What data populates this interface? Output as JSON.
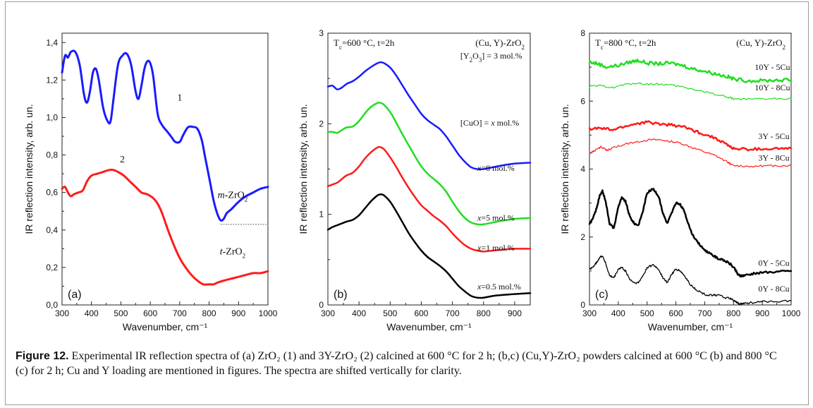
{
  "caption": {
    "label": "Figure 12.",
    "text": " Experimental IR reflection spectra of (a) ZrO₂ (1) and 3Y-ZrO₂ (2) calcined at 600 °C for 2 h; (b,c) (Cu,Y)-ZrO₂ powders calcined at 600 °C (b) and 800 °C (c) for 2 h; Cu and Y loading are mentioned in figures. The spectra are shifted vertically for clarity."
  },
  "chart_data": [
    {
      "type": "line",
      "panel_label": "(a)",
      "xlabel": "Wavenumber, cm⁻¹",
      "ylabel": "IR reflection intensity, arb. un.",
      "xlim": [
        300,
        1000
      ],
      "ylim": [
        0.0,
        1.45
      ],
      "xticks": [
        300,
        400,
        500,
        600,
        700,
        800,
        900,
        1000
      ],
      "yticks": [
        0.0,
        0.2,
        0.4,
        0.6,
        0.8,
        1.0,
        1.2,
        1.4
      ],
      "ytick_labels": [
        "0,0",
        "0,2",
        "0,4",
        "0,6",
        "0,8",
        "1,0",
        "1,2",
        "1,4"
      ],
      "grid": false,
      "reference_line": {
        "style": "dotted",
        "y": 0.43,
        "x": [
          840,
          1000
        ]
      },
      "annotations": [
        {
          "text": "1",
          "x": 700,
          "y": 1.09
        },
        {
          "text": "2",
          "x": 505,
          "y": 0.76
        },
        {
          "text": "m-ZrO₂",
          "x": 880,
          "y": 0.57
        },
        {
          "text": "t-ZrO₂",
          "x": 880,
          "y": 0.27
        }
      ],
      "series": [
        {
          "color": "#1a1aff",
          "width": 3,
          "x": [
            300,
            310,
            320,
            330,
            345,
            360,
            375,
            385,
            395,
            405,
            415,
            425,
            440,
            455,
            465,
            475,
            490,
            505,
            520,
            535,
            550,
            560,
            570,
            580,
            590,
            600,
            610,
            625,
            640,
            655,
            670,
            685,
            700,
            710,
            720,
            730,
            745,
            760,
            775,
            785,
            795,
            805,
            815,
            825,
            835,
            842,
            850,
            860,
            875,
            900,
            925,
            950,
            975,
            1000
          ],
          "y": [
            1.24,
            1.33,
            1.32,
            1.35,
            1.35,
            1.28,
            1.12,
            1.08,
            1.14,
            1.24,
            1.26,
            1.2,
            1.05,
            0.98,
            0.98,
            1.1,
            1.28,
            1.33,
            1.34,
            1.28,
            1.14,
            1.1,
            1.17,
            1.26,
            1.3,
            1.29,
            1.22,
            1.02,
            0.96,
            0.93,
            0.9,
            0.87,
            0.87,
            0.9,
            0.93,
            0.95,
            0.95,
            0.94,
            0.88,
            0.8,
            0.72,
            0.64,
            0.56,
            0.5,
            0.46,
            0.45,
            0.46,
            0.49,
            0.51,
            0.55,
            0.58,
            0.6,
            0.62,
            0.63
          ]
        },
        {
          "color": "#ff1a1a",
          "width": 3,
          "x": [
            300,
            310,
            320,
            330,
            340,
            355,
            370,
            385,
            400,
            420,
            440,
            460,
            475,
            490,
            510,
            530,
            550,
            570,
            590,
            610,
            625,
            640,
            660,
            680,
            700,
            720,
            740,
            760,
            780,
            800,
            815,
            830,
            850,
            875,
            900,
            925,
            950,
            975,
            1000
          ],
          "y": [
            0.62,
            0.63,
            0.6,
            0.58,
            0.59,
            0.6,
            0.61,
            0.66,
            0.69,
            0.7,
            0.71,
            0.72,
            0.72,
            0.71,
            0.69,
            0.66,
            0.63,
            0.6,
            0.59,
            0.57,
            0.54,
            0.49,
            0.4,
            0.32,
            0.25,
            0.2,
            0.16,
            0.13,
            0.11,
            0.11,
            0.11,
            0.12,
            0.13,
            0.14,
            0.15,
            0.16,
            0.17,
            0.17,
            0.18
          ]
        }
      ]
    },
    {
      "type": "line",
      "panel_label": "(b)",
      "xlabel": "Wavenumber, cm⁻¹",
      "ylabel": "IR reflection intensity, arb. un.",
      "xlim": [
        300,
        950
      ],
      "ylim": [
        0,
        3
      ],
      "xticks": [
        300,
        400,
        500,
        600,
        700,
        800,
        900
      ],
      "yticks": [
        0,
        1,
        2,
        3
      ],
      "ytick_labels": [
        "0",
        "1",
        "2",
        "3"
      ],
      "grid": false,
      "title_left": "Tⱼ=600 °C, t=2h",
      "title_left_base": "T",
      "title_left_sub": "c",
      "title_left_rest": "=600 °C, t=2h",
      "title_right": "(Cu, Y)-ZrO₂",
      "annotations": [
        {
          "text": "[Y₂O₃] = 3 mol.%",
          "x": 825,
          "y": 2.72
        },
        {
          "text": "[CuO] = x mol.%",
          "x": 820,
          "y": 1.98
        },
        {
          "text": "x=8 mol.%",
          "x": 840,
          "y": 1.48
        },
        {
          "text": "x=5 mol.%",
          "x": 840,
          "y": 0.93
        },
        {
          "text": "x=1 mol.%",
          "x": 840,
          "y": 0.6
        },
        {
          "text": "x=0.5 mol.%",
          "x": 850,
          "y": 0.17
        }
      ],
      "series": [
        {
          "name": "x=8 mol.%",
          "color": "#1a1aff",
          "width": 2.5,
          "x": [
            300,
            315,
            330,
            345,
            360,
            380,
            400,
            420,
            440,
            460,
            470,
            480,
            500,
            520,
            540,
            560,
            580,
            600,
            620,
            640,
            660,
            680,
            700,
            720,
            740,
            760,
            780,
            800,
            830,
            860,
            900,
            950
          ],
          "y": [
            2.41,
            2.42,
            2.38,
            2.4,
            2.44,
            2.47,
            2.52,
            2.58,
            2.63,
            2.67,
            2.68,
            2.67,
            2.62,
            2.53,
            2.42,
            2.31,
            2.21,
            2.11,
            2.04,
            1.99,
            1.94,
            1.86,
            1.76,
            1.66,
            1.58,
            1.52,
            1.5,
            1.5,
            1.52,
            1.54,
            1.56,
            1.57
          ]
        },
        {
          "name": "x=5 mol.%",
          "color": "#22dd22",
          "width": 2.5,
          "x": [
            300,
            315,
            330,
            345,
            360,
            380,
            400,
            420,
            440,
            460,
            470,
            480,
            500,
            520,
            540,
            560,
            580,
            600,
            620,
            640,
            660,
            680,
            700,
            720,
            740,
            760,
            780,
            800,
            830,
            860,
            900,
            950
          ],
          "y": [
            1.91,
            1.91,
            1.9,
            1.93,
            1.96,
            1.97,
            2.03,
            2.12,
            2.19,
            2.23,
            2.23,
            2.21,
            2.13,
            2.01,
            1.88,
            1.76,
            1.64,
            1.53,
            1.45,
            1.39,
            1.33,
            1.25,
            1.14,
            1.04,
            0.96,
            0.91,
            0.89,
            0.89,
            0.91,
            0.93,
            0.95,
            0.96
          ]
        },
        {
          "name": "x=1 mol.%",
          "color": "#ff1a1a",
          "width": 2.5,
          "x": [
            300,
            315,
            330,
            345,
            360,
            380,
            400,
            420,
            440,
            460,
            470,
            480,
            500,
            520,
            540,
            560,
            580,
            600,
            620,
            640,
            660,
            680,
            700,
            720,
            740,
            760,
            780,
            800,
            830,
            860,
            900,
            950
          ],
          "y": [
            1.31,
            1.33,
            1.35,
            1.39,
            1.43,
            1.46,
            1.53,
            1.62,
            1.69,
            1.74,
            1.74,
            1.72,
            1.63,
            1.52,
            1.4,
            1.29,
            1.19,
            1.1,
            1.04,
            0.98,
            0.93,
            0.87,
            0.79,
            0.72,
            0.66,
            0.62,
            0.6,
            0.59,
            0.6,
            0.61,
            0.62,
            0.62
          ]
        },
        {
          "name": "x=0.5 mol.%",
          "color": "#000000",
          "width": 2.5,
          "x": [
            300,
            315,
            330,
            345,
            360,
            380,
            400,
            420,
            440,
            460,
            470,
            480,
            500,
            520,
            540,
            560,
            580,
            600,
            620,
            640,
            660,
            680,
            700,
            720,
            740,
            760,
            780,
            800,
            830,
            860,
            900,
            950
          ],
          "y": [
            0.83,
            0.86,
            0.88,
            0.9,
            0.92,
            0.94,
            0.99,
            1.07,
            1.15,
            1.21,
            1.22,
            1.21,
            1.14,
            1.03,
            0.91,
            0.79,
            0.69,
            0.6,
            0.53,
            0.48,
            0.43,
            0.37,
            0.29,
            0.21,
            0.15,
            0.1,
            0.08,
            0.08,
            0.1,
            0.11,
            0.12,
            0.13
          ]
        }
      ]
    },
    {
      "type": "line",
      "panel_label": "(c)",
      "xlabel": "Wavenumber, cm⁻¹",
      "ylabel": "IR reflection intensity, arb. un.",
      "xlim": [
        300,
        1000
      ],
      "ylim": [
        0,
        8
      ],
      "xticks": [
        300,
        400,
        500,
        600,
        700,
        800,
        900,
        1000
      ],
      "yticks": [
        0,
        2,
        4,
        6,
        8
      ],
      "ytick_labels": [
        "0",
        "2",
        "4",
        "6",
        "8"
      ],
      "grid": false,
      "title_left": "Tⱼ=800 °C, t=2h",
      "title_left_base": "T",
      "title_left_sub": "c",
      "title_left_rest": "=800 °C, t=2h",
      "title_right": "(Cu, Y)-ZrO₂",
      "annotations": [
        {
          "text": "10Y - 5Cu",
          "x": 935,
          "y": 6.92
        },
        {
          "text": "10Y - 8Cu",
          "x": 935,
          "y": 6.32
        },
        {
          "text": "3Y - 5Cu",
          "x": 940,
          "y": 4.88
        },
        {
          "text": "3Y - 8Cu",
          "x": 940,
          "y": 4.25
        },
        {
          "text": "0Y - 5Cu",
          "x": 940,
          "y": 1.15
        },
        {
          "text": "0Y - 8Cu",
          "x": 940,
          "y": 0.4
        }
      ],
      "series": [
        {
          "name": "10Y - 5Cu",
          "color": "#22dd22",
          "width": 2.5,
          "noise": 0.05,
          "x": [
            300,
            330,
            360,
            400,
            440,
            470,
            500,
            540,
            580,
            620,
            660,
            700,
            740,
            780,
            800,
            850,
            900,
            950,
            1000
          ],
          "y": [
            7.15,
            7.1,
            7.0,
            7.05,
            7.15,
            7.2,
            7.12,
            7.1,
            7.12,
            7.06,
            6.95,
            6.88,
            6.8,
            6.72,
            6.65,
            6.6,
            6.6,
            6.62,
            6.62
          ]
        },
        {
          "name": "10Y - 8Cu",
          "color": "#22dd22",
          "width": 1.2,
          "noise": 0.03,
          "x": [
            300,
            340,
            380,
            420,
            460,
            500,
            540,
            580,
            620,
            660,
            700,
            740,
            780,
            800,
            850,
            900,
            950,
            1000
          ],
          "y": [
            6.43,
            6.45,
            6.4,
            6.48,
            6.53,
            6.5,
            6.5,
            6.47,
            6.42,
            6.35,
            6.27,
            6.2,
            6.12,
            6.07,
            6.05,
            6.06,
            6.07,
            6.08
          ]
        },
        {
          "name": "3Y - 5Cu",
          "color": "#ff1a1a",
          "width": 2.5,
          "noise": 0.04,
          "x": [
            300,
            340,
            380,
            420,
            460,
            500,
            540,
            580,
            620,
            660,
            700,
            740,
            780,
            800,
            850,
            900,
            950,
            1000
          ],
          "y": [
            5.18,
            5.2,
            5.15,
            5.25,
            5.33,
            5.38,
            5.33,
            5.3,
            5.26,
            5.14,
            5.02,
            4.9,
            4.7,
            4.6,
            4.58,
            4.59,
            4.6,
            4.61
          ]
        },
        {
          "name": "3Y - 8Cu",
          "color": "#ff1a1a",
          "width": 1.2,
          "noise": 0.03,
          "x": [
            300,
            320,
            340,
            360,
            380,
            420,
            460,
            500,
            540,
            580,
            620,
            660,
            700,
            740,
            780,
            800,
            850,
            900,
            950,
            1000
          ],
          "y": [
            4.45,
            4.55,
            4.65,
            4.55,
            4.62,
            4.72,
            4.8,
            4.85,
            4.86,
            4.82,
            4.75,
            4.62,
            4.5,
            4.38,
            4.2,
            4.1,
            4.08,
            4.09,
            4.1,
            4.1
          ]
        },
        {
          "name": "0Y - 5Cu",
          "color": "#000000",
          "width": 2.5,
          "noise": 0.03,
          "x": [
            300,
            310,
            325,
            335,
            345,
            355,
            370,
            385,
            400,
            412,
            425,
            440,
            455,
            470,
            485,
            500,
            520,
            540,
            555,
            570,
            585,
            600,
            615,
            630,
            650,
            670,
            690,
            710,
            730,
            750,
            770,
            790,
            805,
            815,
            825,
            840,
            870,
            900,
            950,
            1000
          ],
          "y": [
            2.4,
            2.5,
            2.85,
            3.2,
            3.35,
            3.1,
            2.4,
            2.25,
            2.9,
            3.15,
            3.05,
            2.6,
            2.4,
            2.35,
            2.75,
            3.3,
            3.42,
            3.2,
            2.7,
            2.4,
            2.7,
            3.0,
            2.95,
            2.75,
            2.2,
            1.9,
            1.7,
            1.55,
            1.45,
            1.35,
            1.3,
            1.2,
            1.05,
            0.9,
            0.85,
            0.88,
            0.92,
            0.95,
            0.98,
            1.0
          ]
        },
        {
          "name": "0Y - 8Cu",
          "color": "#000000",
          "width": 1.3,
          "noise": 0.03,
          "x": [
            300,
            310,
            325,
            335,
            345,
            355,
            370,
            385,
            400,
            412,
            425,
            440,
            455,
            470,
            485,
            500,
            520,
            540,
            555,
            570,
            585,
            600,
            615,
            630,
            650,
            670,
            690,
            710,
            730,
            750,
            770,
            790,
            805,
            815,
            825,
            840,
            870,
            900,
            950,
            1000
          ],
          "y": [
            1.05,
            1.1,
            1.25,
            1.4,
            1.45,
            1.25,
            0.85,
            0.8,
            1.05,
            1.1,
            1.0,
            0.75,
            0.65,
            0.65,
            0.85,
            1.1,
            1.18,
            1.05,
            0.8,
            0.65,
            0.9,
            1.05,
            1.0,
            0.85,
            0.6,
            0.45,
            0.35,
            0.28,
            0.3,
            0.28,
            0.22,
            0.18,
            0.1,
            0.05,
            0.03,
            0.05,
            0.07,
            0.09,
            0.11,
            0.12
          ]
        }
      ]
    }
  ]
}
